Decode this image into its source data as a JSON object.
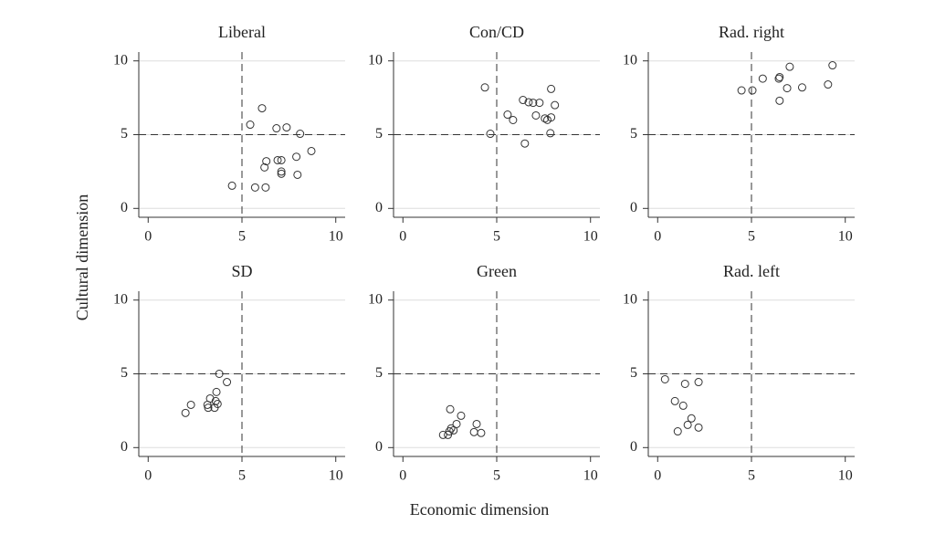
{
  "xlabel": "Economic dimension",
  "ylabel": "Cultural dimension",
  "chart_data": [
    {
      "type": "scatter",
      "title": "Liberal",
      "xlim": [
        -0.5,
        10.5
      ],
      "ylim": [
        -0.6,
        10.6
      ],
      "xticks": [
        0,
        5,
        10
      ],
      "yticks": [
        0,
        5,
        10
      ],
      "grid": true,
      "vline": 5,
      "hline": 5,
      "x": [
        4.47,
        5.44,
        6.07,
        6.84,
        7.38,
        8.1,
        8.7,
        7.9,
        7.96,
        6.3,
        6.2,
        6.9,
        7.1,
        7.1,
        7.1,
        5.7,
        6.26
      ],
      "y": [
        1.54,
        5.68,
        6.79,
        5.43,
        5.49,
        5.06,
        3.89,
        3.5,
        2.28,
        3.2,
        2.78,
        3.27,
        3.27,
        2.5,
        2.35,
        1.42,
        1.42
      ]
    },
    {
      "type": "scatter",
      "title": "Con/CD",
      "xlim": [
        -0.5,
        10.5
      ],
      "ylim": [
        -0.6,
        10.6
      ],
      "xticks": [
        0,
        5,
        10
      ],
      "yticks": [
        0,
        5,
        10
      ],
      "grid": true,
      "vline": 5,
      "hline": 5,
      "x": [
        4.37,
        4.66,
        5.58,
        5.87,
        6.4,
        6.7,
        6.94,
        7.28,
        7.09,
        6.5,
        7.57,
        7.7,
        7.9,
        7.9,
        8.1,
        7.86
      ],
      "y": [
        8.2,
        5.06,
        6.36,
        5.99,
        7.35,
        7.2,
        7.16,
        7.16,
        6.3,
        4.4,
        6.1,
        6.0,
        6.17,
        8.1,
        7.0,
        5.1
      ]
    },
    {
      "type": "scatter",
      "title": "Rad. right",
      "xlim": [
        -0.5,
        10.5
      ],
      "ylim": [
        -0.6,
        10.6
      ],
      "xticks": [
        0,
        5,
        10
      ],
      "yticks": [
        0,
        5,
        10
      ],
      "grid": true,
      "vline": 5,
      "hline": 5,
      "x": [
        4.47,
        5.05,
        5.6,
        6.46,
        6.5,
        7.04,
        6.9,
        7.7,
        9.08,
        9.32,
        6.5
      ],
      "y": [
        8.0,
        8.0,
        8.8,
        8.8,
        8.9,
        9.6,
        8.15,
        8.2,
        8.4,
        9.7,
        7.3
      ]
    },
    {
      "type": "scatter",
      "title": "SD",
      "xlim": [
        -0.5,
        10.5
      ],
      "ylim": [
        -0.6,
        10.6
      ],
      "xticks": [
        0,
        5,
        10
      ],
      "yticks": [
        0,
        5,
        10
      ],
      "grid": true,
      "vline": 5,
      "hline": 5,
      "x": [
        1.99,
        2.28,
        3.16,
        3.2,
        3.54,
        3.3,
        3.64,
        3.6,
        3.7,
        3.79,
        4.2
      ],
      "y": [
        2.35,
        2.9,
        2.9,
        2.7,
        2.7,
        3.33,
        3.77,
        3.15,
        2.96,
        5.0,
        4.44
      ]
    },
    {
      "type": "scatter",
      "title": "Green",
      "xlim": [
        -0.5,
        10.5
      ],
      "ylim": [
        -0.6,
        10.6
      ],
      "xticks": [
        0,
        5,
        10
      ],
      "yticks": [
        0,
        5,
        10
      ],
      "grid": true,
      "vline": 5,
      "hline": 5,
      "x": [
        2.52,
        3.1,
        2.86,
        2.57,
        2.48,
        2.7,
        2.4,
        2.14,
        3.93,
        3.79,
        4.17
      ],
      "y": [
        2.6,
        2.16,
        1.6,
        1.3,
        1.1,
        1.17,
        0.86,
        0.86,
        1.6,
        1.05,
        0.99
      ]
    },
    {
      "type": "scatter",
      "title": "Rad. left",
      "xlim": [
        -0.5,
        10.5
      ],
      "ylim": [
        -0.6,
        10.6
      ],
      "xticks": [
        0,
        5,
        10
      ],
      "yticks": [
        0,
        5,
        10
      ],
      "grid": true,
      "vline": 5,
      "hline": 5,
      "x": [
        0.39,
        0.92,
        1.36,
        1.46,
        2.18,
        1.8,
        1.6,
        1.07,
        2.18
      ],
      "y": [
        4.63,
        3.15,
        2.84,
        4.32,
        4.44,
        1.98,
        1.54,
        1.1,
        1.36
      ]
    }
  ]
}
